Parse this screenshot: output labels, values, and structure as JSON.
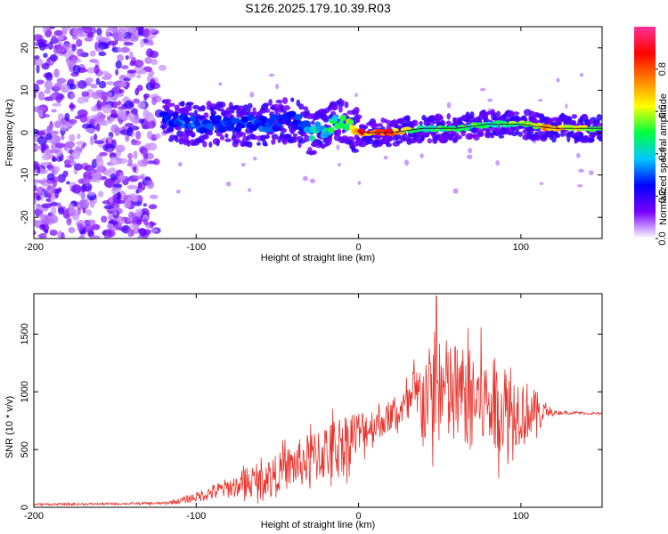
{
  "title": "S126.2025.179.10.39.R03",
  "chart_data": [
    {
      "type": "heatmap",
      "xlabel": "Height of straight line (km)",
      "ylabel": "Frequency (Hz)",
      "xlim": [
        -200,
        150
      ],
      "ylim": [
        -25,
        25
      ],
      "x_ticks": [
        -200,
        -100,
        0,
        100
      ],
      "y_ticks": [
        -20,
        -10,
        0,
        10,
        20
      ],
      "colorbar": {
        "label": "Normalized spectral amplitude",
        "range": [
          0,
          1
        ],
        "ticks": [
          "0.0",
          "0.2",
          "0.4",
          "0.6",
          "0.8"
        ],
        "tick_values": [
          0.0,
          0.2,
          0.4,
          0.6,
          0.8
        ],
        "colors": [
          "#ffffff",
          "#7a00ff",
          "#0000ff",
          "#00c8ff",
          "#00ff40",
          "#ffff00",
          "#ff8000",
          "#ff0000",
          "#ff3399"
        ]
      },
      "ridge": {
        "description_points_x_km": [
          -120,
          -100,
          -80,
          -60,
          -40,
          -30,
          -20,
          -10,
          0,
          20,
          40,
          60,
          80,
          100,
          120,
          150
        ],
        "frequency_hz": [
          3,
          2,
          2,
          2,
          3,
          0,
          1,
          3,
          0,
          0,
          1,
          1,
          2,
          2,
          1,
          1
        ],
        "amplitude": [
          0.3,
          0.35,
          0.3,
          0.35,
          0.25,
          0.45,
          0.5,
          0.55,
          0.9,
          0.95,
          0.5,
          0.6,
          0.55,
          0.6,
          0.85,
          0.6
        ]
      },
      "noise_region_x_km": [
        -200,
        -120
      ]
    },
    {
      "type": "line",
      "xlabel": "Height of straight line (km)",
      "ylabel": "SNR (10 * v/v)",
      "xlim": [
        -200,
        150
      ],
      "ylim": [
        0,
        1850
      ],
      "x_ticks": [
        -200,
        -100,
        0,
        100
      ],
      "y_ticks": [
        0,
        500,
        1000,
        1500
      ],
      "color": "#e8312a",
      "series": [
        {
          "x": [
            -200,
            -150,
            -120,
            -110,
            -100,
            -90,
            -80,
            -70,
            -60,
            -50,
            -40,
            -30,
            -20,
            -10,
            0,
            10,
            20,
            30,
            40,
            50,
            60,
            70,
            80,
            90,
            100,
            110,
            120,
            130,
            140,
            150
          ],
          "mean": [
            25,
            30,
            35,
            55,
            90,
            130,
            170,
            200,
            240,
            300,
            360,
            420,
            480,
            560,
            650,
            720,
            780,
            880,
            980,
            1000,
            980,
            950,
            900,
            850,
            850,
            820,
            820,
            820,
            815,
            810
          ],
          "amplitude": [
            10,
            10,
            12,
            25,
            45,
            70,
            90,
            110,
            130,
            160,
            200,
            230,
            250,
            260,
            200,
            150,
            120,
            180,
            350,
            500,
            450,
            420,
            400,
            380,
            300,
            180,
            20,
            15,
            12,
            10
          ],
          "peak": {
            "x": 48,
            "y": 1830
          }
        }
      ]
    }
  ]
}
